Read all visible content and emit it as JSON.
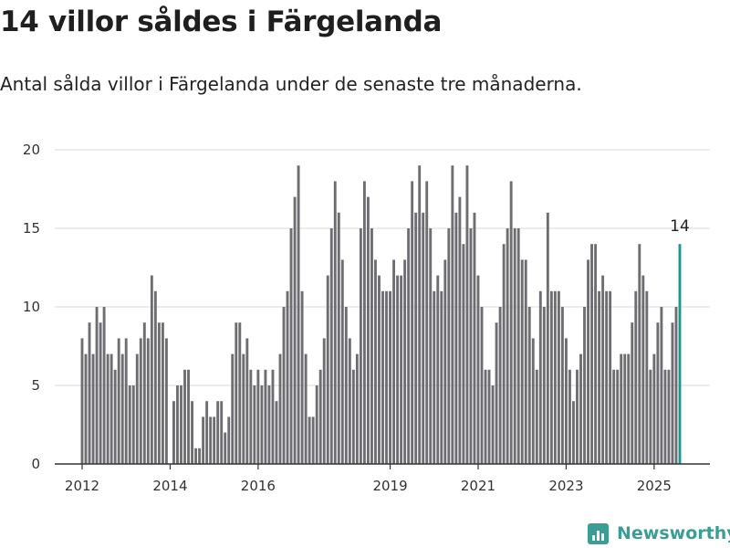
{
  "header": {
    "title": "14 villor såldes i Färgelanda",
    "subtitle": "Antal sålda villor i Färgelanda under de senaste tre månaderna."
  },
  "brand": {
    "name": "Newsworthy",
    "color": "#3a9e95"
  },
  "colors": {
    "bar": "#6e6d72",
    "highlight": "#1a9a8f",
    "grid": "#d9d9d9",
    "axis": "#333333"
  },
  "chart_data": {
    "type": "bar",
    "title": "",
    "xlabel": "",
    "ylabel": "",
    "ylim": [
      0,
      20
    ],
    "yticks": [
      0,
      5,
      10,
      15,
      20
    ],
    "grid": true,
    "legend": "none",
    "start": "2012-01",
    "end": "2025-06",
    "x_ticks": [
      "2012",
      "2014",
      "2016",
      "2019",
      "2021",
      "2023",
      "2025"
    ],
    "values": [
      8,
      7,
      9,
      7,
      10,
      9,
      10,
      7,
      7,
      6,
      8,
      7,
      8,
      5,
      5,
      7,
      8,
      9,
      8,
      12,
      11,
      9,
      9,
      8,
      0,
      4,
      5,
      5,
      6,
      6,
      4,
      1,
      1,
      3,
      4,
      3,
      3,
      4,
      4,
      2,
      3,
      7,
      9,
      9,
      7,
      8,
      6,
      5,
      6,
      5,
      6,
      5,
      6,
      4,
      7,
      10,
      11,
      15,
      17,
      19,
      11,
      7,
      3,
      3,
      5,
      6,
      8,
      12,
      15,
      18,
      16,
      13,
      10,
      8,
      6,
      7,
      15,
      18,
      17,
      15,
      13,
      12,
      11,
      11,
      11,
      13,
      12,
      12,
      13,
      15,
      18,
      16,
      19,
      16,
      18,
      15,
      11,
      12,
      11,
      13,
      15,
      19,
      16,
      17,
      14,
      19,
      15,
      16,
      12,
      10,
      6,
      6,
      5,
      9,
      10,
      14,
      15,
      18,
      15,
      15,
      13,
      13,
      10,
      8,
      6,
      11,
      10,
      16,
      11,
      11,
      11,
      10,
      8,
      6,
      4,
      6,
      7,
      10,
      13,
      14,
      14,
      11,
      12,
      11,
      11,
      6,
      6,
      7,
      7,
      7,
      9,
      11,
      14,
      12,
      11,
      6,
      7,
      9,
      10,
      6,
      6,
      9,
      10,
      14
    ],
    "highlight_label": "14"
  }
}
